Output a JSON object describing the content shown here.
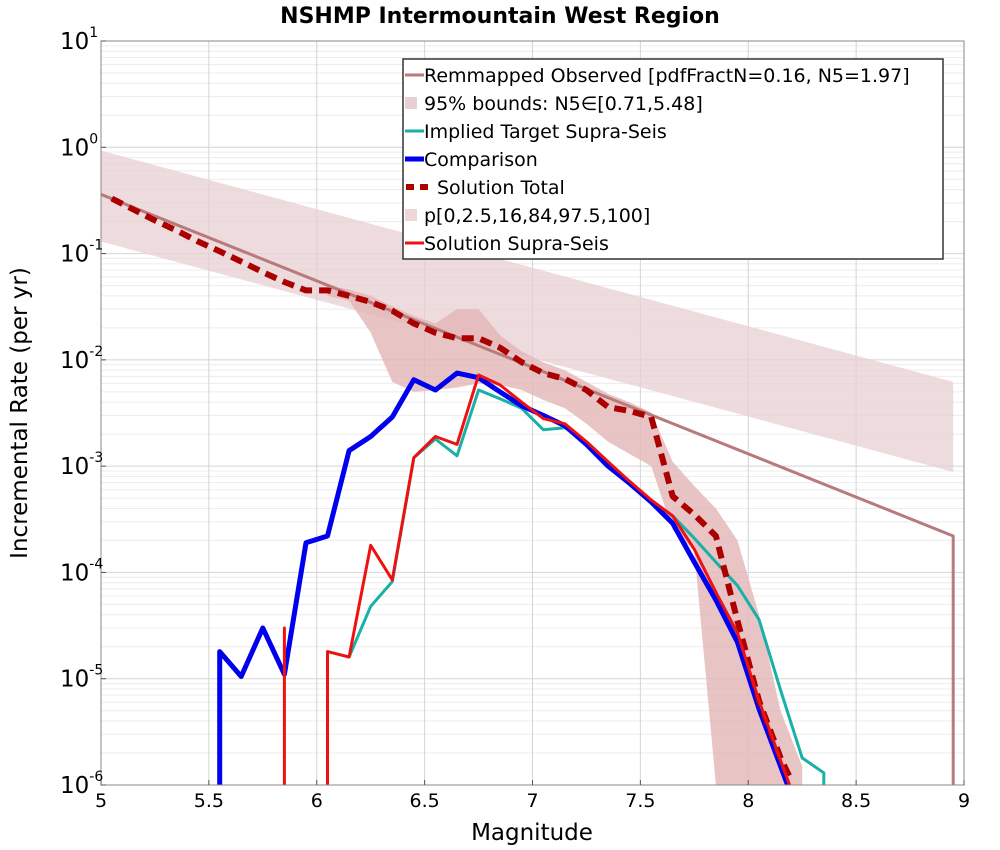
{
  "chart_data": {
    "type": "line",
    "title": "NSHMP Intermountain West Region",
    "xlabel": "Magnitude",
    "ylabel": "Incremental Rate (per yr)",
    "xlim": [
      5,
      9
    ],
    "ylim": [
      1e-06,
      10
    ],
    "yscale": "log",
    "grid": true,
    "legend_position": "top-right",
    "xticks": [
      "5",
      "5.5",
      "6",
      "6.5",
      "7",
      "7.5",
      "8",
      "8.5",
      "9"
    ],
    "yticks": [
      {
        "base": "10",
        "exp": "-6"
      },
      {
        "base": "10",
        "exp": "-5"
      },
      {
        "base": "10",
        "exp": "-4"
      },
      {
        "base": "10",
        "exp": "-3"
      },
      {
        "base": "10",
        "exp": "-2"
      },
      {
        "base": "10",
        "exp": "-1"
      },
      {
        "base": "10",
        "exp": "0"
      },
      {
        "base": "10",
        "exp": "1"
      }
    ],
    "bands": [
      {
        "name": "95% bounds: N5∈[0.71,5.48]",
        "color": "#e8cfd1",
        "x": [
          5.0,
          8.95
        ],
        "upper": [
          0.93,
          0.0062
        ],
        "lower": [
          0.13,
          0.00088
        ],
        "upper_drop": 1e-06
      },
      {
        "name": "p[0,2.5,16,84,97.5,100]",
        "color": "#e3b5b7",
        "x": [
          6.05,
          6.15,
          6.25,
          6.35,
          6.45,
          6.55,
          6.65,
          6.75,
          6.85,
          6.95,
          7.05,
          7.15,
          7.25,
          7.35,
          7.45,
          7.55,
          7.65,
          7.75,
          7.85,
          7.95,
          8.05,
          8.15,
          8.25
        ],
        "upper": [
          0.05,
          0.046,
          0.04,
          0.032,
          0.026,
          0.022,
          0.03,
          0.03,
          0.017,
          0.012,
          0.0095,
          0.008,
          0.0062,
          0.0048,
          0.004,
          0.0032,
          0.0011,
          0.00065,
          0.0004,
          0.0002,
          4e-05,
          5e-06,
          1.5e-06
        ],
        "lower": [
          0.04,
          0.036,
          0.018,
          0.0062,
          0.005,
          0.0052,
          0.0055,
          0.006,
          0.0058,
          0.0052,
          0.0042,
          0.0035,
          0.0025,
          0.0017,
          0.0013,
          0.001,
          0.00025,
          0.00016,
          1e-06,
          1e-06,
          1e-06,
          1e-06,
          1e-06
        ]
      }
    ],
    "series": [
      {
        "name": "Remmapped Observed [pdfFractN=0.16, N5=1.97]",
        "color": "#b87a7a",
        "width": 3,
        "x": [
          5.0,
          8.95,
          8.95
        ],
        "y": [
          0.36,
          0.00022,
          6e-07
        ]
      },
      {
        "name": "Implied Target Supra-Seis",
        "color": "#19b0a8",
        "width": 3,
        "x": [
          6.15,
          6.25,
          6.35,
          6.45,
          6.55,
          6.65,
          6.75,
          6.85,
          6.95,
          7.05,
          7.15,
          7.25,
          7.35,
          7.45,
          7.55,
          7.65,
          7.75,
          7.85,
          7.95,
          8.05,
          8.15,
          8.25,
          8.35,
          8.35
        ],
        "y": [
          1.6e-05,
          4.8e-05,
          8.2e-05,
          0.0012,
          0.0018,
          0.00125,
          0.0052,
          0.0043,
          0.0035,
          0.0022,
          0.0023,
          0.0017,
          0.0011,
          0.0007,
          0.00047,
          0.00034,
          0.00021,
          0.000125,
          7.5e-05,
          3.6e-05,
          7.8e-06,
          1.8e-06,
          1.3e-06,
          8e-07
        ]
      },
      {
        "name": "Comparison",
        "color": "#0000ee",
        "width": 5,
        "x": [
          5.55,
          5.55,
          5.65,
          5.75,
          5.85,
          5.95,
          6.05,
          6.15,
          6.25,
          6.35,
          6.45,
          6.55,
          6.65,
          6.75,
          6.85,
          6.95,
          7.05,
          7.15,
          7.25,
          7.35,
          7.45,
          7.55,
          7.65,
          7.75,
          7.85,
          7.95,
          8.05,
          8.15,
          8.2
        ],
        "y": [
          8e-07,
          1.8e-05,
          1.05e-05,
          3e-05,
          1.1e-05,
          0.00019,
          0.00022,
          0.0014,
          0.0019,
          0.0029,
          0.0065,
          0.0052,
          0.0075,
          0.0068,
          0.005,
          0.0037,
          0.003,
          0.0024,
          0.0016,
          0.001,
          0.00069,
          0.00046,
          0.00029,
          0.000125,
          5.5e-05,
          2.2e-05,
          5.2e-06,
          1.5e-06,
          8e-07
        ]
      },
      {
        "name": "Solution Total",
        "color": "#aa0000",
        "width": 6,
        "dash": "12 7",
        "x": [
          5.05,
          5.15,
          5.25,
          5.35,
          5.45,
          5.55,
          5.65,
          5.75,
          5.85,
          5.95,
          6.05,
          6.15,
          6.25,
          6.35,
          6.45,
          6.55,
          6.65,
          6.75,
          6.85,
          6.95,
          7.05,
          7.15,
          7.25,
          7.35,
          7.45,
          7.55,
          7.65,
          7.75,
          7.85,
          7.95,
          8.05,
          8.15,
          8.2
        ],
        "y": [
          0.33,
          0.26,
          0.205,
          0.165,
          0.13,
          0.105,
          0.084,
          0.067,
          0.054,
          0.045,
          0.045,
          0.04,
          0.035,
          0.029,
          0.022,
          0.018,
          0.016,
          0.016,
          0.013,
          0.0095,
          0.0075,
          0.0066,
          0.0052,
          0.0036,
          0.0033,
          0.0029,
          0.00052,
          0.00035,
          0.00022,
          3.5e-05,
          6.2e-06,
          1.8e-06,
          1.1e-06
        ]
      },
      {
        "name": "Solution Supra-Seis",
        "color": "#ee1111",
        "width": 3,
        "x": [
          5.85,
          5.85,
          5.85,
          6.05,
          6.05,
          6.15,
          6.25,
          6.35,
          6.45,
          6.55,
          6.65,
          6.75,
          6.85,
          6.95,
          7.05,
          7.15,
          7.25,
          7.35,
          7.45,
          7.55,
          7.65,
          7.75,
          7.85,
          7.95,
          8.05,
          8.15,
          8.2
        ],
        "y": [
          6e-07,
          3e-05,
          8e-07,
          6e-07,
          1.8e-05,
          1.6e-05,
          0.00018,
          8.5e-05,
          0.0012,
          0.0019,
          0.0016,
          0.0072,
          0.0058,
          0.004,
          0.0028,
          0.0025,
          0.0017,
          0.0011,
          0.00072,
          0.00048,
          0.00034,
          0.000165,
          6.5e-05,
          2.7e-05,
          6.2e-06,
          1.7e-06,
          9e-07
        ]
      }
    ],
    "legend": [
      {
        "label": "Remmapped Observed [pdfFractN=0.16, N5=1.97]",
        "kind": "line",
        "color": "#b87a7a",
        "width": 3
      },
      {
        "label": "95% bounds: N5∈[0.71,5.48]",
        "kind": "patch",
        "color": "#e8cfd1"
      },
      {
        "label": "Implied Target Supra-Seis",
        "kind": "line",
        "color": "#19b0a8",
        "width": 3
      },
      {
        "label": "Comparison",
        "kind": "line",
        "color": "#0000ee",
        "width": 5
      },
      {
        "label": "Solution Total",
        "kind": "dash",
        "color": "#aa0000",
        "width": 6
      },
      {
        "label": "p[0,2.5,16,84,97.5,100]",
        "kind": "patch",
        "color": "#f0d6d7"
      },
      {
        "label": "Solution Supra-Seis",
        "kind": "line",
        "color": "#ee1111",
        "width": 3
      }
    ]
  }
}
